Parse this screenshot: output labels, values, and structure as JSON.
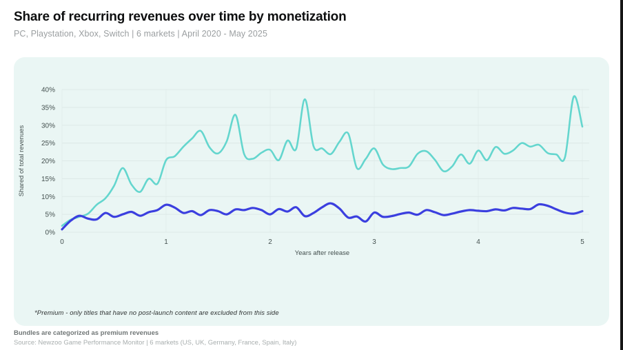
{
  "header": {
    "title": "Share of recurring revenues over time by monetization",
    "subtitle": "PC, Playstation, Xbox, Switch | 6 markets | April 2020 - May 2025"
  },
  "panel": {
    "footnote": "*Premium - only titles that have no post-launch content are excluded from this side"
  },
  "footer": {
    "note": "Bundles are categorized as premium revenues",
    "source": "Source: Newzoo Game Performance Monitor | 6 markets (US, UK, Germany, France, Spain, Italy)"
  },
  "colors": {
    "panel_bg": "#eaf6f4",
    "grid_h": "#dde9e7",
    "grid_v": "#e2edeb",
    "tick_text": "#44504f",
    "teal_line": "#64d6ce",
    "blue_line": "#3b3fdf"
  },
  "chart_data": {
    "type": "line",
    "title": "",
    "xlabel": "Years after release",
    "ylabel": "Shared of total revenues",
    "xlim": [
      0,
      5
    ],
    "ylim": [
      0,
      42
    ],
    "x_ticks": [
      0,
      1,
      2,
      3,
      4,
      5
    ],
    "y_ticks": [
      0,
      5,
      10,
      15,
      20,
      25,
      30,
      35,
      40
    ],
    "y_tick_suffix": "%",
    "grid": true,
    "legend_position": "none",
    "x": [
      0,
      0.083,
      0.167,
      0.25,
      0.333,
      0.417,
      0.5,
      0.583,
      0.667,
      0.75,
      0.833,
      0.917,
      1,
      1.083,
      1.167,
      1.25,
      1.333,
      1.417,
      1.5,
      1.583,
      1.667,
      1.75,
      1.833,
      1.917,
      2,
      2.083,
      2.167,
      2.25,
      2.333,
      2.417,
      2.5,
      2.583,
      2.667,
      2.75,
      2.833,
      2.917,
      3,
      3.083,
      3.167,
      3.25,
      3.333,
      3.417,
      3.5,
      3.583,
      3.667,
      3.75,
      3.833,
      3.917,
      4,
      4.083,
      4.167,
      4.25,
      4.333,
      4.417,
      4.5,
      4.583,
      4.667,
      4.75,
      4.833,
      4.917,
      5
    ],
    "series": [
      {
        "name": "teal-line",
        "color": "#64d6ce",
        "stroke_width": 2.6,
        "values": [
          1.8,
          3.5,
          4.3,
          5.2,
          7.7,
          9.5,
          13.0,
          18.0,
          13.4,
          11.3,
          15.0,
          13.6,
          20.2,
          21.3,
          24.0,
          26.3,
          28.4,
          23.8,
          22.1,
          25.5,
          32.9,
          21.9,
          20.6,
          22.3,
          23.1,
          20.2,
          25.7,
          23.4,
          37.3,
          24.1,
          23.5,
          21.9,
          25.4,
          27.7,
          18.0,
          20.5,
          23.5,
          19.0,
          17.7,
          18.0,
          18.4,
          22.0,
          22.7,
          20.3,
          17.1,
          18.5,
          21.8,
          19.2,
          22.9,
          20.2,
          23.9,
          22.0,
          22.9,
          25.0,
          24.0,
          24.5,
          22.2,
          21.8,
          21.0,
          38.0,
          29.6
        ]
      },
      {
        "name": "blue-line",
        "color": "#3b3fdf",
        "stroke_width": 3.2,
        "values": [
          0.8,
          3.2,
          4.6,
          3.8,
          3.6,
          5.4,
          4.3,
          5.0,
          5.7,
          4.6,
          5.6,
          6.2,
          7.7,
          6.9,
          5.4,
          5.9,
          4.8,
          6.2,
          5.9,
          5.0,
          6.4,
          6.2,
          6.8,
          6.2,
          5.0,
          6.5,
          5.8,
          7.0,
          4.5,
          5.4,
          7.0,
          8.1,
          6.6,
          4.1,
          4.4,
          3.0,
          5.5,
          4.3,
          4.5,
          5.1,
          5.5,
          4.9,
          6.2,
          5.6,
          4.8,
          5.2,
          5.8,
          6.2,
          6.0,
          5.9,
          6.4,
          6.1,
          6.8,
          6.6,
          6.5,
          7.8,
          7.4,
          6.4,
          5.5,
          5.2,
          5.9
        ]
      }
    ]
  }
}
